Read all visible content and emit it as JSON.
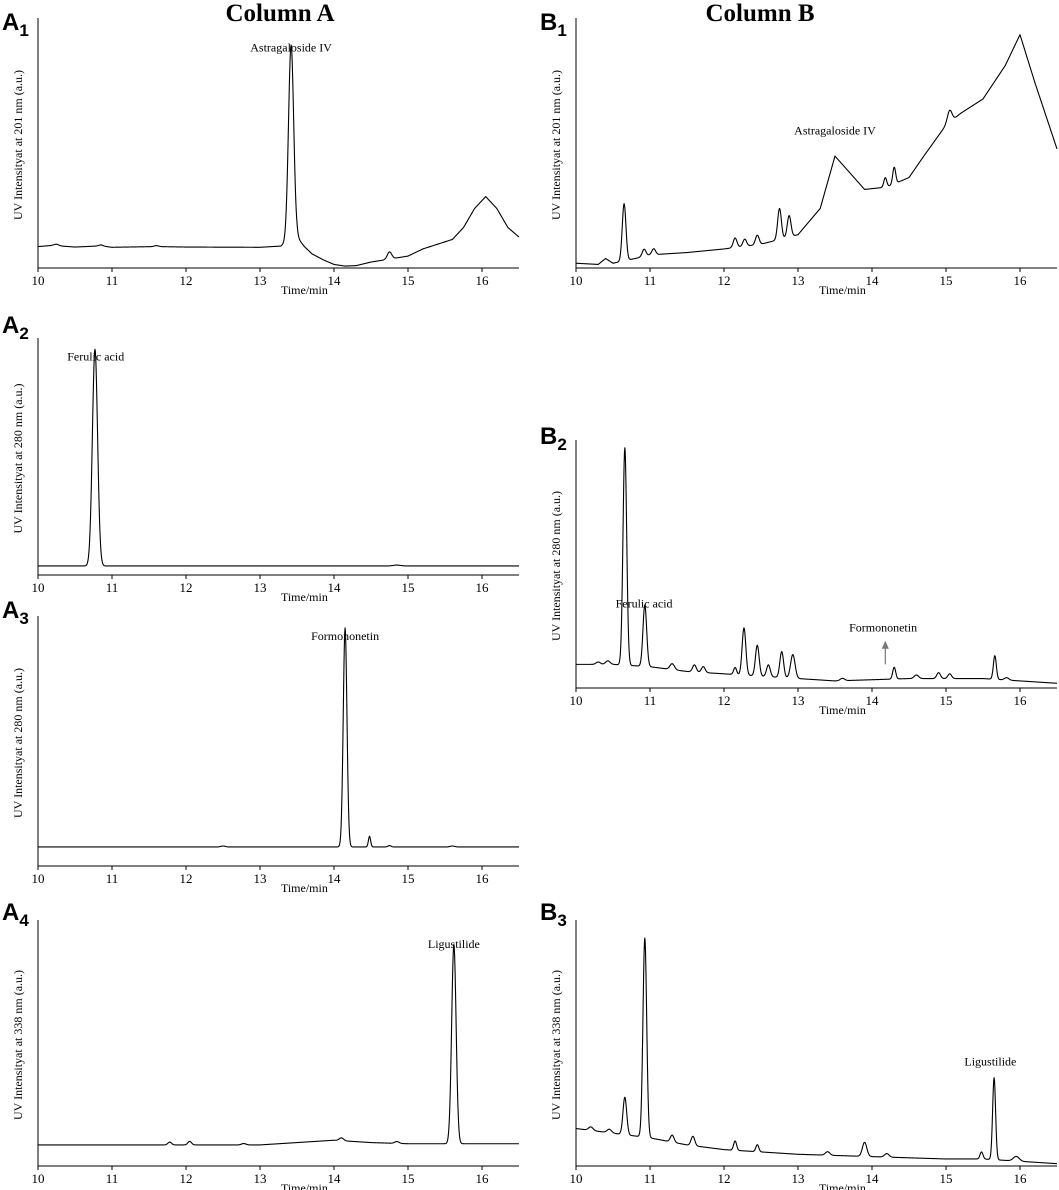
{
  "columns": {
    "a": "Column A",
    "b": "Column B"
  },
  "chart_data": [
    {
      "id": "A1",
      "panel_letter": "A",
      "panel_index": "1",
      "column": "a",
      "type": "line",
      "ylabel": "UV Intensityat at 201 nm (a.u.)",
      "xlabel": "Time/min",
      "xlim": [
        10,
        16.5
      ],
      "xticks": [
        "10",
        "11",
        "12",
        "13",
        "14",
        "15",
        "16"
      ],
      "ylim": [
        0,
        1.05
      ],
      "grid": false,
      "annotations": [
        {
          "text": "Astragaloside IV",
          "x": 13.42,
          "y": 0.91
        }
      ],
      "baseline": [
        [
          10,
          0.09
        ],
        [
          10.2,
          0.095
        ],
        [
          10.5,
          0.088
        ],
        [
          10.85,
          0.093
        ],
        [
          11,
          0.087
        ],
        [
          11.6,
          0.09
        ],
        [
          12,
          0.088
        ],
        [
          13,
          0.087
        ],
        [
          13.28,
          0.092
        ],
        [
          13.5,
          0.13
        ],
        [
          13.6,
          0.09
        ],
        [
          13.7,
          0.06
        ],
        [
          13.85,
          0.035
        ],
        [
          14,
          0.015
        ],
        [
          14.15,
          0.008
        ],
        [
          14.3,
          0.01
        ],
        [
          14.5,
          0.025
        ],
        [
          14.8,
          0.04
        ],
        [
          15,
          0.05
        ],
        [
          15.2,
          0.08
        ],
        [
          15.4,
          0.1
        ],
        [
          15.6,
          0.12
        ],
        [
          15.75,
          0.17
        ],
        [
          15.9,
          0.25
        ],
        [
          16.05,
          0.3
        ],
        [
          16.2,
          0.25
        ],
        [
          16.35,
          0.17
        ],
        [
          16.5,
          0.13
        ]
      ],
      "peaks": [
        {
          "x": 13.42,
          "h": 0.82,
          "w": 0.035
        },
        {
          "x": 14.75,
          "h": 0.03,
          "w": 0.03
        },
        {
          "x": 10.25,
          "h": 0.006,
          "w": 0.03
        },
        {
          "x": 10.85,
          "h": 0.004,
          "w": 0.03
        },
        {
          "x": 11.6,
          "h": 0.004,
          "w": 0.03
        }
      ]
    },
    {
      "id": "A2",
      "panel_letter": "A",
      "panel_index": "2",
      "column": "a",
      "type": "line",
      "ylabel": "UV Intensityat at 280 nm (a.u.)",
      "xlabel": "Time/min",
      "xlim": [
        10,
        16.5
      ],
      "xticks": [
        "10",
        "11",
        "12",
        "13",
        "14",
        "15",
        "16"
      ],
      "ylim": [
        0,
        1.05
      ],
      "grid": false,
      "annotations": [
        {
          "text": "Ferulic acid",
          "x": 10.78,
          "y": 0.95
        }
      ],
      "baseline": [
        [
          10,
          0.04
        ],
        [
          16.5,
          0.04
        ]
      ],
      "peaks": [
        {
          "x": 10.77,
          "h": 0.96,
          "w": 0.035
        },
        {
          "x": 14.85,
          "h": 0.004,
          "w": 0.05
        }
      ]
    },
    {
      "id": "A3",
      "panel_letter": "A",
      "panel_index": "3",
      "column": "a",
      "type": "line",
      "ylabel": "UV Intensityat at 280 nm (a.u.)",
      "xlabel": "Time/min",
      "xlim": [
        10,
        16.5
      ],
      "xticks": [
        "10",
        "11",
        "12",
        "13",
        "14",
        "15",
        "16"
      ],
      "ylim": [
        0,
        1.05
      ],
      "grid": false,
      "annotations": [
        {
          "text": "Formononetin",
          "x": 14.15,
          "y": 0.95
        }
      ],
      "baseline": [
        [
          10,
          0.08
        ],
        [
          16.5,
          0.08
        ]
      ],
      "peaks": [
        {
          "x": 14.15,
          "h": 0.92,
          "w": 0.025
        },
        {
          "x": 14.48,
          "h": 0.045,
          "w": 0.015
        },
        {
          "x": 12.5,
          "h": 0.004,
          "w": 0.03
        },
        {
          "x": 14.75,
          "h": 0.006,
          "w": 0.02
        },
        {
          "x": 15.6,
          "h": 0.004,
          "w": 0.03
        }
      ]
    },
    {
      "id": "A4",
      "panel_letter": "A",
      "panel_index": "4",
      "column": "a",
      "type": "line",
      "ylabel": "UV Intensityat at 338 nm (a.u.)",
      "xlabel": "Time/min",
      "xlim": [
        10,
        16.5
      ],
      "xticks": [
        "10",
        "11",
        "12",
        "13",
        "14",
        "15",
        "16"
      ],
      "ylim": [
        0,
        1.05
      ],
      "grid": false,
      "annotations": [
        {
          "text": "Ligustilide",
          "x": 15.62,
          "y": 0.93
        }
      ],
      "baseline": [
        [
          10,
          0.09
        ],
        [
          12,
          0.09
        ],
        [
          13,
          0.09
        ],
        [
          13.5,
          0.1
        ],
        [
          14,
          0.11
        ],
        [
          14.5,
          0.1
        ],
        [
          15,
          0.095
        ],
        [
          16.5,
          0.095
        ]
      ],
      "peaks": [
        {
          "x": 15.62,
          "h": 0.85,
          "w": 0.03
        },
        {
          "x": 11.78,
          "h": 0.012,
          "w": 0.025
        },
        {
          "x": 12.05,
          "h": 0.015,
          "w": 0.025
        },
        {
          "x": 12.78,
          "h": 0.006,
          "w": 0.03
        },
        {
          "x": 14.1,
          "h": 0.012,
          "w": 0.03
        },
        {
          "x": 14.85,
          "h": 0.008,
          "w": 0.03
        }
      ]
    },
    {
      "id": "B1",
      "panel_letter": "B",
      "panel_index": "1",
      "column": "b",
      "type": "line",
      "ylabel": "UV Intensityat at 201 nm (a.u.)",
      "xlabel": "Time/min",
      "xlim": [
        10,
        16.5
      ],
      "xticks": [
        "10",
        "11",
        "12",
        "13",
        "14",
        "15",
        "16"
      ],
      "ylim": [
        0,
        1.05
      ],
      "grid": false,
      "annotations": [
        {
          "text": "Astragaloside IV",
          "x": 13.5,
          "y": 0.56
        }
      ],
      "baseline": [
        [
          10,
          0.02
        ],
        [
          10.3,
          0.015
        ],
        [
          10.4,
          0.04
        ],
        [
          10.5,
          0.02
        ],
        [
          10.8,
          0.04
        ],
        [
          11,
          0.055
        ],
        [
          11.5,
          0.065
        ],
        [
          12,
          0.08
        ],
        [
          12.5,
          0.1
        ],
        [
          13,
          0.14
        ],
        [
          13.3,
          0.25
        ],
        [
          13.5,
          0.47
        ],
        [
          13.7,
          0.4
        ],
        [
          13.9,
          0.33
        ],
        [
          14.2,
          0.34
        ],
        [
          14.5,
          0.38
        ],
        [
          14.7,
          0.47
        ],
        [
          15,
          0.6
        ],
        [
          15.2,
          0.65
        ],
        [
          15.5,
          0.71
        ],
        [
          15.8,
          0.85
        ],
        [
          16,
          0.98
        ],
        [
          16.2,
          0.78
        ],
        [
          16.5,
          0.5
        ]
      ],
      "peaks": [
        {
          "x": 10.65,
          "h": 0.24,
          "w": 0.025
        },
        {
          "x": 10.92,
          "h": 0.03,
          "w": 0.025
        },
        {
          "x": 11.05,
          "h": 0.025,
          "w": 0.025
        },
        {
          "x": 12.15,
          "h": 0.04,
          "w": 0.025
        },
        {
          "x": 12.28,
          "h": 0.03,
          "w": 0.025
        },
        {
          "x": 12.45,
          "h": 0.04,
          "w": 0.025
        },
        {
          "x": 12.75,
          "h": 0.13,
          "w": 0.025
        },
        {
          "x": 12.88,
          "h": 0.09,
          "w": 0.025
        },
        {
          "x": 14.18,
          "h": 0.04,
          "w": 0.02
        },
        {
          "x": 14.3,
          "h": 0.07,
          "w": 0.02
        },
        {
          "x": 15.05,
          "h": 0.05,
          "w": 0.03
        }
      ]
    },
    {
      "id": "B2",
      "panel_letter": "B",
      "panel_index": "2",
      "column": "b",
      "type": "line",
      "ylabel": "UV Intensityat at 280 nm (a.u.)",
      "xlabel": "Time/min",
      "xlim": [
        10,
        16.5
      ],
      "xticks": [
        "10",
        "11",
        "12",
        "13",
        "14",
        "15",
        "16"
      ],
      "ylim": [
        0,
        1.05
      ],
      "grid": false,
      "annotations": [
        {
          "text": "Ferulic acid",
          "x": 10.92,
          "y": 0.34
        },
        {
          "text": "Formononetin",
          "x": 14.15,
          "y": 0.24,
          "arrow": [
            14.18,
            0.2,
            14.18,
            0.1
          ]
        }
      ],
      "baseline": [
        [
          10,
          0.1
        ],
        [
          10.5,
          0.1
        ],
        [
          11,
          0.09
        ],
        [
          11.5,
          0.07
        ],
        [
          12,
          0.06
        ],
        [
          12.5,
          0.05
        ],
        [
          13,
          0.04
        ],
        [
          13.5,
          0.03
        ],
        [
          14,
          0.035
        ],
        [
          14.5,
          0.04
        ],
        [
          15,
          0.04
        ],
        [
          15.5,
          0.04
        ],
        [
          16,
          0.03
        ],
        [
          16.5,
          0.02
        ]
      ],
      "peaks": [
        {
          "x": 10.66,
          "h": 0.92,
          "w": 0.025
        },
        {
          "x": 10.93,
          "h": 0.26,
          "w": 0.025
        },
        {
          "x": 10.3,
          "h": 0.01,
          "w": 0.03
        },
        {
          "x": 10.43,
          "h": 0.015,
          "w": 0.03
        },
        {
          "x": 11.3,
          "h": 0.025,
          "w": 0.03
        },
        {
          "x": 11.6,
          "h": 0.03,
          "w": 0.025
        },
        {
          "x": 11.72,
          "h": 0.025,
          "w": 0.025
        },
        {
          "x": 12.15,
          "h": 0.03,
          "w": 0.02
        },
        {
          "x": 12.27,
          "h": 0.2,
          "w": 0.025
        },
        {
          "x": 12.45,
          "h": 0.13,
          "w": 0.025
        },
        {
          "x": 12.6,
          "h": 0.05,
          "w": 0.025
        },
        {
          "x": 12.78,
          "h": 0.11,
          "w": 0.025
        },
        {
          "x": 12.93,
          "h": 0.1,
          "w": 0.03
        },
        {
          "x": 13.6,
          "h": 0.01,
          "w": 0.03
        },
        {
          "x": 14.3,
          "h": 0.05,
          "w": 0.02
        },
        {
          "x": 14.6,
          "h": 0.015,
          "w": 0.03
        },
        {
          "x": 14.9,
          "h": 0.025,
          "w": 0.025
        },
        {
          "x": 15.05,
          "h": 0.02,
          "w": 0.025
        },
        {
          "x": 15.66,
          "h": 0.1,
          "w": 0.02
        },
        {
          "x": 15.82,
          "h": 0.01,
          "w": 0.03
        }
      ]
    },
    {
      "id": "B3",
      "panel_letter": "B",
      "panel_index": "3",
      "column": "b",
      "type": "line",
      "ylabel": "UV Intensityat at 338 nm (a.u.)",
      "xlabel": "Time/min",
      "xlim": [
        10,
        16.5
      ],
      "xticks": [
        "10",
        "11",
        "12",
        "13",
        "14",
        "15",
        "16"
      ],
      "ylim": [
        0,
        1.05
      ],
      "grid": false,
      "annotations": [
        {
          "text": "Ligustilide",
          "x": 15.6,
          "y": 0.43
        }
      ],
      "baseline": [
        [
          10,
          0.16
        ],
        [
          10.5,
          0.14
        ],
        [
          11,
          0.12
        ],
        [
          11.5,
          0.09
        ],
        [
          12,
          0.07
        ],
        [
          12.5,
          0.06
        ],
        [
          13,
          0.05
        ],
        [
          13.5,
          0.045
        ],
        [
          14,
          0.04
        ],
        [
          14.5,
          0.035
        ],
        [
          15,
          0.03
        ],
        [
          15.5,
          0.03
        ],
        [
          16,
          0.02
        ],
        [
          16.5,
          0.01
        ]
      ],
      "peaks": [
        {
          "x": 10.66,
          "h": 0.16,
          "w": 0.025
        },
        {
          "x": 10.93,
          "h": 0.85,
          "w": 0.025
        },
        {
          "x": 10.2,
          "h": 0.015,
          "w": 0.03
        },
        {
          "x": 10.45,
          "h": 0.015,
          "w": 0.03
        },
        {
          "x": 11.3,
          "h": 0.03,
          "w": 0.025
        },
        {
          "x": 11.58,
          "h": 0.04,
          "w": 0.025
        },
        {
          "x": 12.15,
          "h": 0.04,
          "w": 0.02
        },
        {
          "x": 12.45,
          "h": 0.03,
          "w": 0.02
        },
        {
          "x": 13.4,
          "h": 0.015,
          "w": 0.03
        },
        {
          "x": 13.9,
          "h": 0.06,
          "w": 0.03
        },
        {
          "x": 14.2,
          "h": 0.015,
          "w": 0.03
        },
        {
          "x": 15.48,
          "h": 0.03,
          "w": 0.02
        },
        {
          "x": 15.65,
          "h": 0.35,
          "w": 0.02
        },
        {
          "x": 15.95,
          "h": 0.02,
          "w": 0.04
        }
      ]
    }
  ]
}
